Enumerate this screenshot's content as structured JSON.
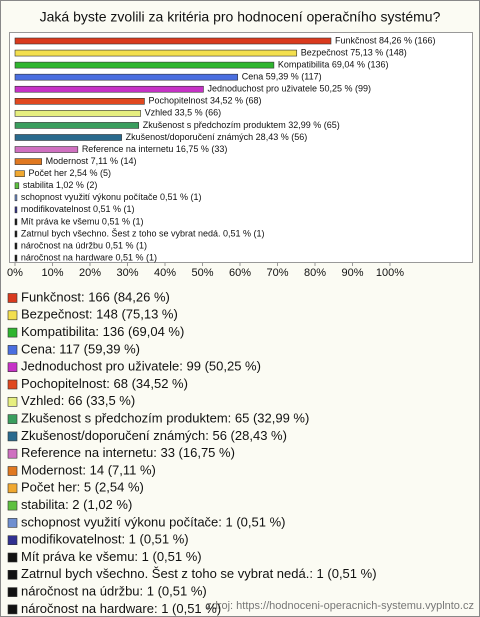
{
  "chart_data": {
    "type": "barh",
    "title": "Jaká byste zvolili za kritéria pro hodnocení operačního systému?",
    "categories": [
      "Funkčnost",
      "Bezpečnost",
      "Kompatibilita",
      "Cena",
      "Jednoduchost pro uživatele",
      "Pochopitelnost",
      "Vzhled",
      "Zkušenost s předchozím produktem",
      "Zkušenost/doporučení známých",
      "Reference na internetu",
      "Modernost",
      "Počet her",
      "stabilita",
      "schopnost využití výkonu počítače",
      "modifikovatelnost",
      "Mít práva ke všemu",
      "Zatrnul bych všechno. Šest z toho se vybrat nedá.",
      "náročnost na údržbu",
      "náročnost na hardware"
    ],
    "values": [
      84.26,
      75.13,
      69.04,
      59.39,
      50.25,
      34.52,
      33.5,
      32.99,
      28.43,
      16.75,
      7.11,
      2.54,
      1.02,
      0.51,
      0.51,
      0.51,
      0.51,
      0.51,
      0.51
    ],
    "value_labels": [
      "Funkčnost 84,26 % (166)",
      "Bezpečnost 75,13 % (148)",
      "Kompatibilita 69,04 % (136)",
      "Cena 59,39 % (117)",
      "Jednoduchost pro uživatele 50,25 % (99)",
      "Pochopitelnost 34,52 % (68)",
      "Vzhled 33,5 % (66)",
      "Zkušenost s předchozím produktem 32,99 % (65)",
      "Zkušenost/doporučení známých 28,43 % (56)",
      "Reference na internetu 16,75 % (33)",
      "Modernost 7,11 % (14)",
      "Počet her 2,54 % (5)",
      "stabilita 1,02 % (2)",
      "schopnost využití výkonu počítače 0,51 % (1)",
      "modifikovatelnost 0,51 % (1)",
      "Mít práva ke všemu 0,51 % (1)",
      "Zatrnul bych všechno. Šest z toho se vybrat nedá. 0,51 % (1)",
      "náročnost na údržbu 0,51 % (1)",
      "náročnost na hardware 0,51 % (1)"
    ],
    "legend_labels": [
      "Funkčnost: 166 (84,26 %)",
      "Bezpečnost: 148 (75,13 %)",
      "Kompatibilita: 136 (69,04 %)",
      "Cena: 117 (59,39 %)",
      "Jednoduchost pro uživatele: 99 (50,25 %)",
      "Pochopitelnost: 68 (34,52 %)",
      "Vzhled: 66 (33,5 %)",
      "Zkušenost s předchozím produktem: 65 (32,99 %)",
      "Zkušenost/doporučení známých: 56 (28,43 %)",
      "Reference na internetu: 33 (16,75 %)",
      "Modernost: 14 (7,11 %)",
      "Počet her: 5 (2,54 %)",
      "stabilita: 2 (1,02 %)",
      "schopnost využití výkonu počítače: 1 (0,51 %)",
      "modifikovatelnost: 1 (0,51 %)",
      "Mít práva ke všemu: 1 (0,51 %)",
      "Zatrnul bych všechno. Šest z toho se vybrat nedá.: 1 (0,51 %)",
      "náročnost na údržbu: 1 (0,51 %)",
      "náročnost na hardware: 1 (0,51 %)"
    ],
    "colors": [
      "#d93a1e",
      "#f3df4e",
      "#2fb52f",
      "#4a6ee0",
      "#c632c6",
      "#e0481f",
      "#e6ef80",
      "#3a9e5e",
      "#2a6a8e",
      "#cf70c0",
      "#e07820",
      "#f0a830",
      "#5ec040",
      "#6f8fd0",
      "#303090",
      "#111111",
      "#111111",
      "#111111",
      "#111111"
    ],
    "xlim": [
      0,
      100
    ],
    "xticks": [
      {
        "value": 0,
        "label": "0%"
      },
      {
        "value": 10,
        "label": "10%"
      },
      {
        "value": 20,
        "label": "20%"
      },
      {
        "value": 30,
        "label": "30%"
      },
      {
        "value": 40,
        "label": "40%"
      },
      {
        "value": 50,
        "label": "50%"
      },
      {
        "value": 60,
        "label": "60%"
      },
      {
        "value": 70,
        "label": "70%"
      },
      {
        "value": 80,
        "label": "80%"
      },
      {
        "value": 90,
        "label": "90%"
      },
      {
        "value": 100,
        "label": "100%"
      }
    ],
    "source": "zdroj: https://hodnoceni-operacnich-systemu.vyplnto.cz"
  }
}
